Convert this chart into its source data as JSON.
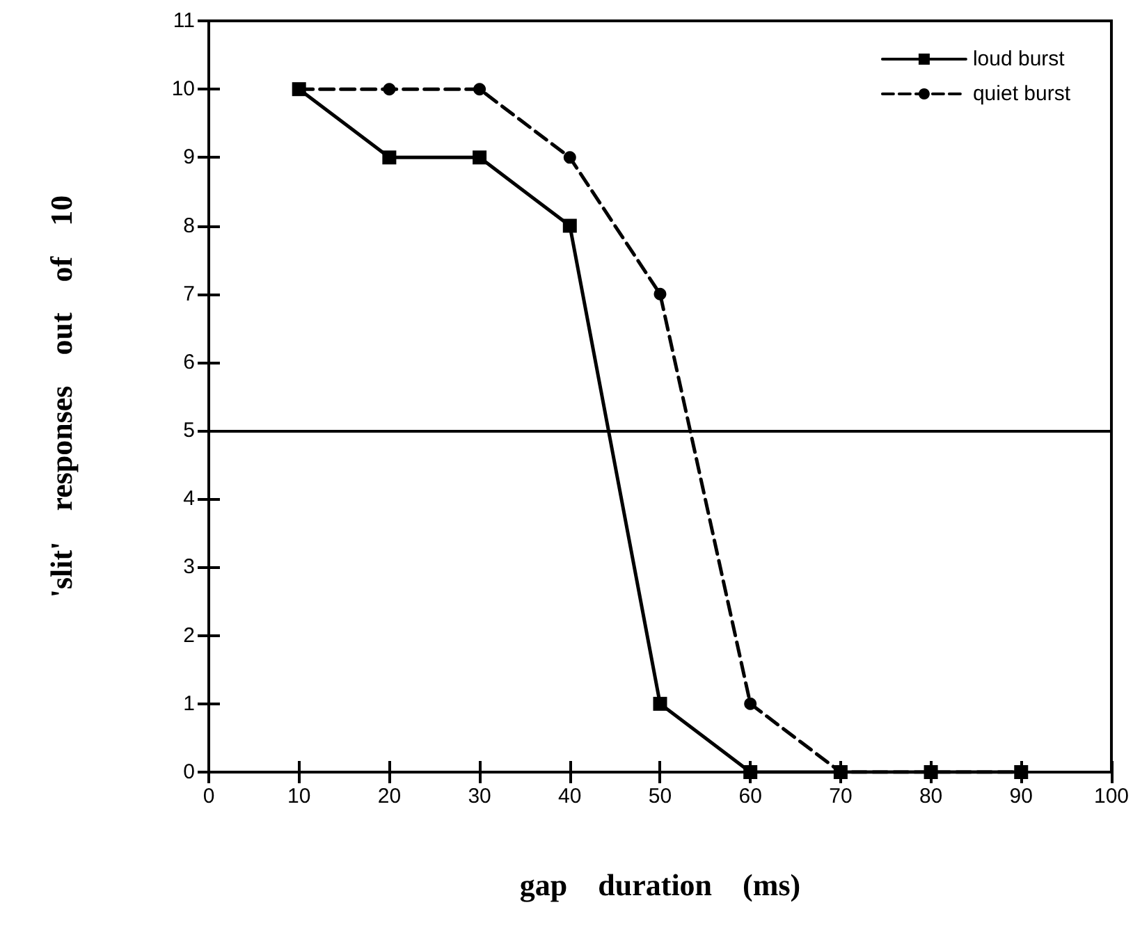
{
  "chart_data": {
    "type": "line",
    "xlabel": "gap    duration    (ms)",
    "ylabel": "'slit'    responses    out    of    10",
    "x": [
      10,
      20,
      30,
      40,
      50,
      60,
      70,
      80,
      90
    ],
    "series": [
      {
        "name": "loud burst",
        "color": "#000000",
        "marker": "square",
        "line_style": "solid",
        "values": [
          10,
          9,
          9,
          8,
          1,
          0,
          0,
          0,
          0
        ]
      },
      {
        "name": "quiet burst",
        "color": "#000000",
        "marker": "circle",
        "line_style": "dashed",
        "values": [
          10,
          10,
          10,
          9,
          7,
          1,
          0,
          0,
          0
        ]
      }
    ],
    "xlim": [
      0,
      100
    ],
    "xticks": [
      0,
      10,
      20,
      30,
      40,
      50,
      60,
      70,
      80,
      90,
      100
    ],
    "ylim": [
      0,
      11
    ],
    "yticks": [
      0,
      1,
      2,
      3,
      4,
      5,
      6,
      7,
      8,
      9,
      10,
      11
    ],
    "ref_lines": [
      {
        "axis": "y",
        "value": 5,
        "color": "#000000",
        "line_style": "solid"
      }
    ],
    "grid": false,
    "legend": "top right"
  }
}
